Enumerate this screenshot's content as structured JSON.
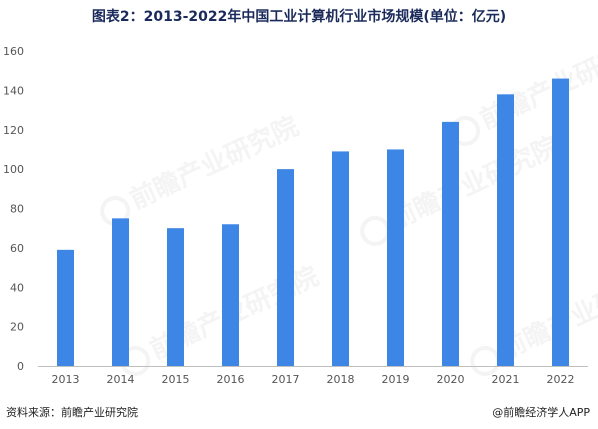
{
  "title": "图表2：2013-2022年中国工业计算机行业市场规模(单位：亿元)",
  "source": "资料来源：前瞻产业研究院",
  "brand": "@前瞻经济学人APP",
  "watermark": "前瞻产业研究院",
  "colors": {
    "bar": "#3d86e6",
    "grid": "#e6e6e6",
    "axis": "#bfbfbf",
    "tick": "#555555"
  },
  "chart_data": {
    "type": "bar",
    "categories": [
      "2013",
      "2014",
      "2015",
      "2016",
      "2017",
      "2018",
      "2019",
      "2020",
      "2021",
      "2022"
    ],
    "values": [
      59,
      75,
      70,
      72,
      100,
      109,
      110,
      124,
      138,
      146
    ],
    "ylim": [
      0,
      160
    ],
    "yticks": [
      0,
      20,
      40,
      60,
      80,
      100,
      120,
      140,
      160
    ],
    "grid": false,
    "xlabel": "",
    "ylabel": ""
  }
}
